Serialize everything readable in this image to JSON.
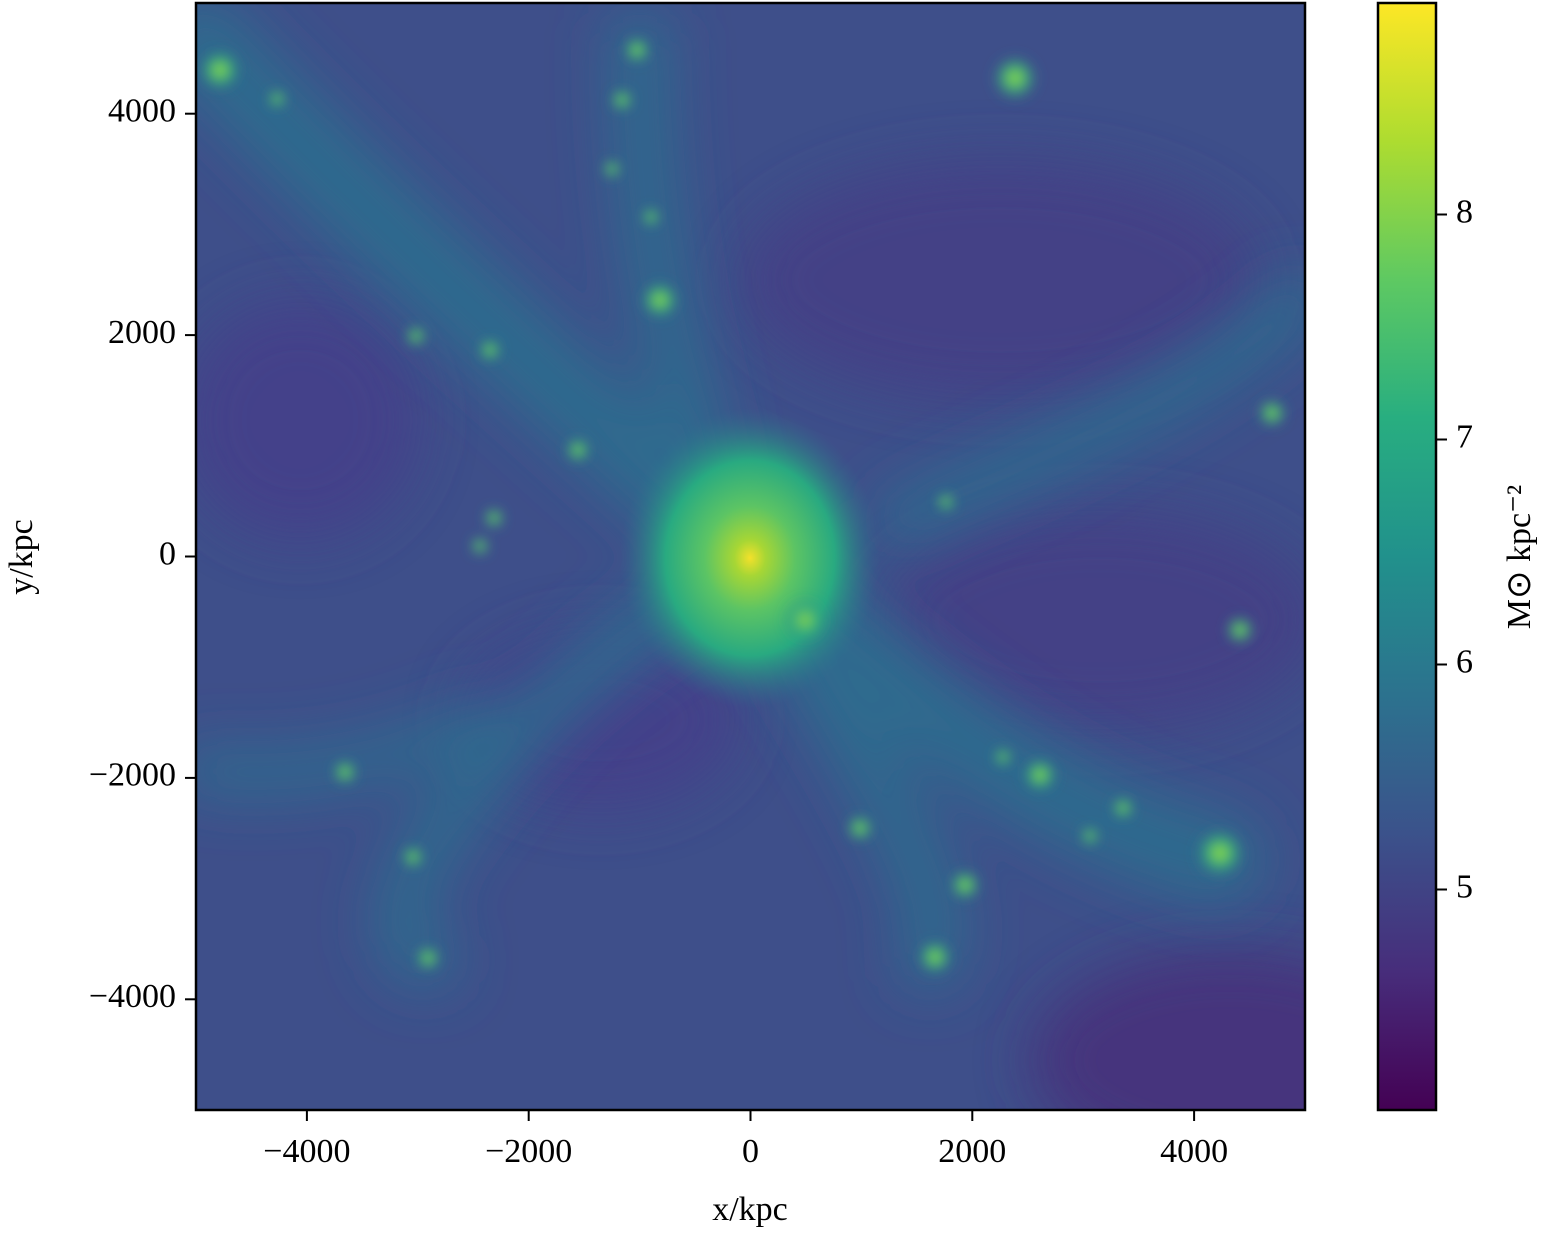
{
  "chart_data": {
    "type": "heatmap",
    "xlabel": "x/kpc",
    "ylabel": "y/kpc",
    "xlim": [
      -5000,
      5000
    ],
    "ylim": [
      -5000,
      5000
    ],
    "xticks": [
      {
        "value": -4000,
        "label": "−4000"
      },
      {
        "value": -2000,
        "label": "−2000"
      },
      0,
      2000,
      {
        "value": 4000,
        "label": "4000"
      }
    ],
    "yticks": [
      {
        "value": -4000,
        "label": "−4000"
      },
      {
        "value": -2000,
        "label": "−2000"
      },
      0,
      2000,
      4000
    ],
    "colormap": "viridis",
    "colorbar": {
      "label": "M⊙ kpc⁻²",
      "lim": [
        4.02,
        8.94
      ],
      "ticks": [
        5,
        6,
        7,
        8
      ]
    }
  }
}
